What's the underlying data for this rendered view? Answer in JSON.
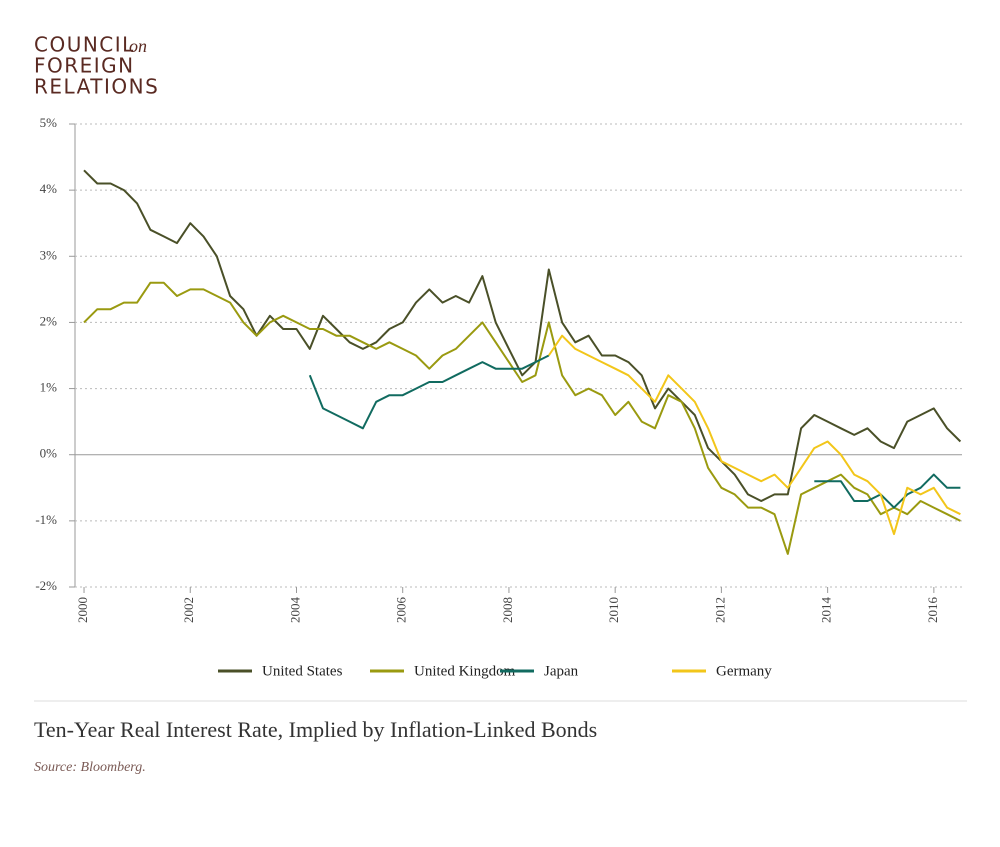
{
  "header": {
    "line1": "COUNCIL",
    "line1_suffix": "on",
    "line2": "FOREIGN",
    "line3": "RELATIONS"
  },
  "chart_data": {
    "type": "line",
    "title": "Ten-Year Real Interest Rate, Implied by Inflation-Linked Bonds",
    "source": "Source: Bloomberg.",
    "x": [
      2000,
      2000.25,
      2000.5,
      2000.75,
      2001,
      2001.25,
      2001.5,
      2001.75,
      2002,
      2002.25,
      2002.5,
      2002.75,
      2003,
      2003.25,
      2003.5,
      2003.75,
      2004,
      2004.25,
      2004.5,
      2004.75,
      2005,
      2005.25,
      2005.5,
      2005.75,
      2006,
      2006.25,
      2006.5,
      2006.75,
      2007,
      2007.25,
      2007.5,
      2007.75,
      2008,
      2008.25,
      2008.5,
      2008.75,
      2009,
      2009.25,
      2009.5,
      2009.75,
      2010,
      2010.25,
      2010.5,
      2010.75,
      2011,
      2011.25,
      2011.5,
      2011.75,
      2012,
      2012.25,
      2012.5,
      2012.75,
      2013,
      2013.25,
      2013.5,
      2013.75,
      2014,
      2014.25,
      2014.5,
      2014.75,
      2015,
      2015.25,
      2015.5,
      2015.75,
      2016,
      2016.25,
      2016.5
    ],
    "series": [
      {
        "name": "United States",
        "color": "#4a5028",
        "values": [
          4.3,
          4.1,
          4.1,
          4.0,
          3.8,
          3.4,
          3.3,
          3.2,
          3.5,
          3.3,
          3.0,
          2.4,
          2.2,
          1.8,
          2.1,
          1.9,
          1.9,
          1.6,
          2.1,
          1.9,
          1.7,
          1.6,
          1.7,
          1.9,
          2.0,
          2.3,
          2.5,
          2.3,
          2.4,
          2.3,
          2.7,
          2.0,
          1.6,
          1.2,
          1.4,
          2.8,
          2.0,
          1.7,
          1.8,
          1.5,
          1.5,
          1.4,
          1.2,
          0.7,
          1.0,
          0.8,
          0.6,
          0.1,
          -0.1,
          -0.3,
          -0.6,
          -0.7,
          -0.6,
          -0.6,
          0.4,
          0.6,
          0.5,
          0.4,
          0.3,
          0.4,
          0.2,
          0.1,
          0.5,
          0.6,
          0.7,
          0.4,
          0.2
        ]
      },
      {
        "name": "United Kingdom",
        "color": "#9a9a10",
        "values": [
          2.0,
          2.2,
          2.2,
          2.3,
          2.3,
          2.6,
          2.6,
          2.4,
          2.5,
          2.5,
          2.4,
          2.3,
          2.0,
          1.8,
          2.0,
          2.1,
          2.0,
          1.9,
          1.9,
          1.8,
          1.8,
          1.7,
          1.6,
          1.7,
          1.6,
          1.5,
          1.3,
          1.5,
          1.6,
          1.8,
          2.0,
          1.7,
          1.4,
          1.1,
          1.2,
          2.0,
          1.2,
          0.9,
          1.0,
          0.9,
          0.6,
          0.8,
          0.5,
          0.4,
          0.9,
          0.8,
          0.4,
          -0.2,
          -0.5,
          -0.6,
          -0.8,
          -0.8,
          -0.9,
          -1.5,
          -0.6,
          -0.5,
          -0.4,
          -0.3,
          -0.5,
          -0.6,
          -0.9,
          -0.8,
          -0.9,
          -0.7,
          -0.8,
          -0.9,
          -1.0
        ]
      },
      {
        "name": "Japan",
        "color": "#116b60",
        "values": [
          null,
          null,
          null,
          null,
          null,
          null,
          null,
          null,
          null,
          null,
          null,
          null,
          null,
          null,
          null,
          null,
          null,
          1.2,
          0.7,
          0.6,
          0.5,
          0.4,
          0.8,
          0.9,
          0.9,
          1.0,
          1.1,
          1.1,
          1.2,
          1.3,
          1.4,
          1.3,
          1.3,
          1.3,
          1.4,
          1.5,
          null,
          null,
          null,
          null,
          null,
          null,
          null,
          null,
          null,
          null,
          null,
          null,
          null,
          null,
          null,
          null,
          null,
          null,
          null,
          -0.4,
          -0.4,
          -0.4,
          -0.7,
          -0.7,
          -0.6,
          -0.8,
          -0.6,
          -0.5,
          -0.3,
          -0.5,
          -0.5
        ]
      },
      {
        "name": "Germany",
        "color": "#f2c61a",
        "values": [
          null,
          null,
          null,
          null,
          null,
          null,
          null,
          null,
          null,
          null,
          null,
          null,
          null,
          null,
          null,
          null,
          null,
          null,
          null,
          null,
          null,
          null,
          null,
          null,
          null,
          null,
          null,
          null,
          null,
          null,
          null,
          null,
          null,
          null,
          null,
          1.5,
          1.8,
          1.6,
          1.5,
          1.4,
          1.3,
          1.2,
          1.0,
          0.8,
          1.2,
          1.0,
          0.8,
          0.4,
          -0.1,
          -0.2,
          -0.3,
          -0.4,
          -0.3,
          -0.5,
          -0.2,
          0.1,
          0.2,
          0.0,
          -0.3,
          -0.4,
          -0.6,
          -1.2,
          -0.5,
          -0.6,
          -0.5,
          -0.8,
          -0.9
        ]
      }
    ],
    "xlim": [
      1999.83,
      2016.53
    ],
    "ylim": [
      -2,
      5
    ],
    "xticks": [
      2000,
      2002,
      2004,
      2006,
      2008,
      2010,
      2012,
      2014,
      2016
    ],
    "yticks": [
      {
        "value": -2,
        "label": "-2%"
      },
      {
        "value": -1,
        "label": "-1%"
      },
      {
        "value": 0,
        "label": "0%"
      },
      {
        "value": 1,
        "label": "1%"
      },
      {
        "value": 2,
        "label": "2%"
      },
      {
        "value": 3,
        "label": "3%"
      },
      {
        "value": 4,
        "label": "4%"
      },
      {
        "value": 5,
        "label": "5%"
      }
    ],
    "grid": true
  }
}
